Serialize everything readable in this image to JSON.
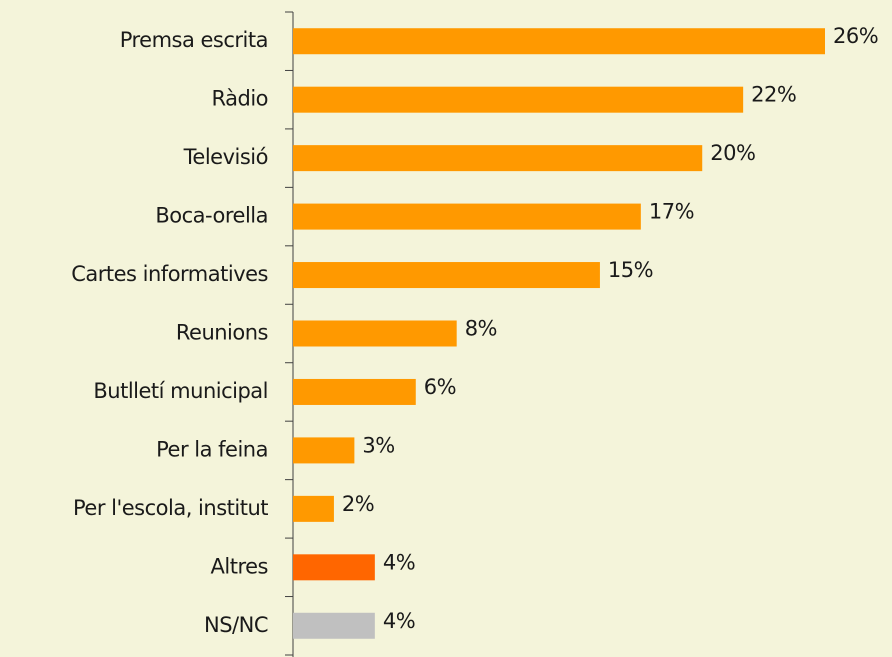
{
  "chart_data": {
    "type": "bar",
    "orientation": "horizontal",
    "categories": [
      "Premsa escrita",
      "Ràdio",
      "Televisió",
      "Boca-orella",
      "Cartes informatives",
      "Reunions",
      "Butlletí municipal",
      "Per la feina",
      "Per l'escola, institut",
      "Altres",
      "NS/NC"
    ],
    "values": [
      26,
      22,
      20,
      17,
      15,
      8,
      6,
      3,
      2,
      4,
      4
    ],
    "value_labels": [
      "26%",
      "22%",
      "20%",
      "17%",
      "15%",
      "8%",
      "6%",
      "3%",
      "2%",
      "4%",
      "4%"
    ],
    "colors": [
      "#FF9900",
      "#FF9900",
      "#FF9900",
      "#FF9900",
      "#FF9900",
      "#FF9900",
      "#FF9900",
      "#FF9900",
      "#FF9900",
      "#FF6600",
      "#C0C0C0"
    ]
  }
}
